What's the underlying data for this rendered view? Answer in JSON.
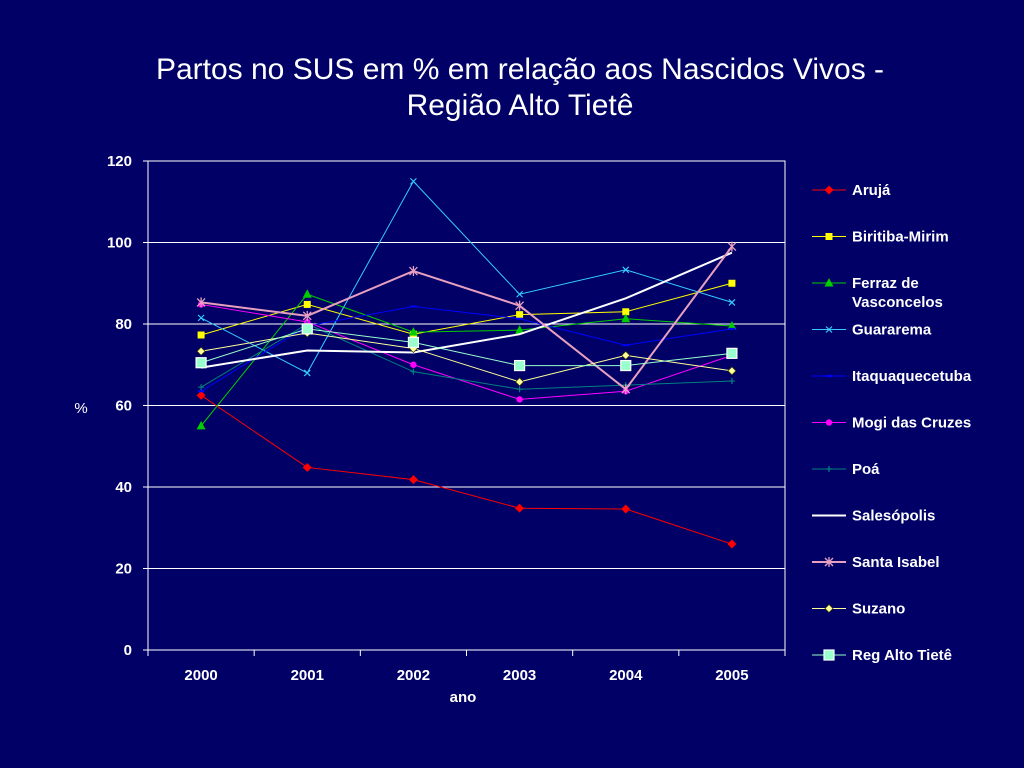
{
  "title": {
    "line1": "Partos no SUS em % em relação aos Nascidos Vivos -",
    "line2": "Região Alto Tietê"
  },
  "chart_data": {
    "type": "line",
    "title": "Partos no SUS em % em relação aos Nascidos Vivos - Região Alto Tietê",
    "xlabel": "ano",
    "ylabel": "%",
    "categories": [
      "2000",
      "2001",
      "2002",
      "2003",
      "2004",
      "2005"
    ],
    "ylim": [
      0,
      120
    ],
    "yticks": [
      0,
      20,
      40,
      60,
      80,
      100,
      120
    ],
    "grid": "horizontal",
    "legend_position": "right",
    "series": [
      {
        "name": "Arujá",
        "color": "#ff0000",
        "marker": "diamond",
        "values": [
          62.5,
          44.8,
          41.8,
          34.8,
          34.6,
          26.0
        ]
      },
      {
        "name": "Biritiba-Mirim",
        "color": "#ffff00",
        "marker": "square",
        "values": [
          77.3,
          84.8,
          77.5,
          82.3,
          83.0,
          90.0
        ]
      },
      {
        "name": "Ferraz de Vasconcelos",
        "color": "#00cc00",
        "marker": "triangle",
        "values": [
          55.0,
          87.3,
          78.0,
          78.5,
          81.3,
          79.5
        ]
      },
      {
        "name": "Guararema",
        "color": "#33ccff",
        "marker": "x",
        "values": [
          81.5,
          68.0,
          115.0,
          87.3,
          93.3,
          85.3
        ]
      },
      {
        "name": "Itaquaquecetuba",
        "color": "#0000ff",
        "marker": "dash",
        "values": [
          63.5,
          79.5,
          84.3,
          81.3,
          74.8,
          78.8
        ]
      },
      {
        "name": "Mogi das Cruzes",
        "color": "#ff00ff",
        "marker": "circle",
        "values": [
          84.8,
          80.5,
          70.0,
          61.5,
          63.5,
          72.3
        ]
      },
      {
        "name": "Poá",
        "color": "#008080",
        "marker": "plus",
        "values": [
          64.5,
          80.0,
          68.3,
          64.0,
          65.0,
          66.0
        ]
      },
      {
        "name": "Salesópolis",
        "color": "#ffffff",
        "marker": "none",
        "values": [
          69.3,
          73.5,
          73.0,
          77.5,
          86.3,
          97.5
        ]
      },
      {
        "name": "Santa Isabel",
        "color": "#e8a0c0",
        "marker": "star",
        "values": [
          85.3,
          82.0,
          93.0,
          84.5,
          64.0,
          99.0
        ]
      },
      {
        "name": "Suzano",
        "color": "#ffff99",
        "marker": "diamond",
        "values": [
          73.3,
          77.8,
          74.0,
          65.8,
          72.3,
          68.5
        ]
      },
      {
        "name": "Reg Alto Tietê",
        "color": "#99ffcc",
        "marker": "bigsquare",
        "values": [
          70.5,
          78.8,
          75.5,
          69.8,
          69.8,
          72.8
        ]
      }
    ]
  }
}
